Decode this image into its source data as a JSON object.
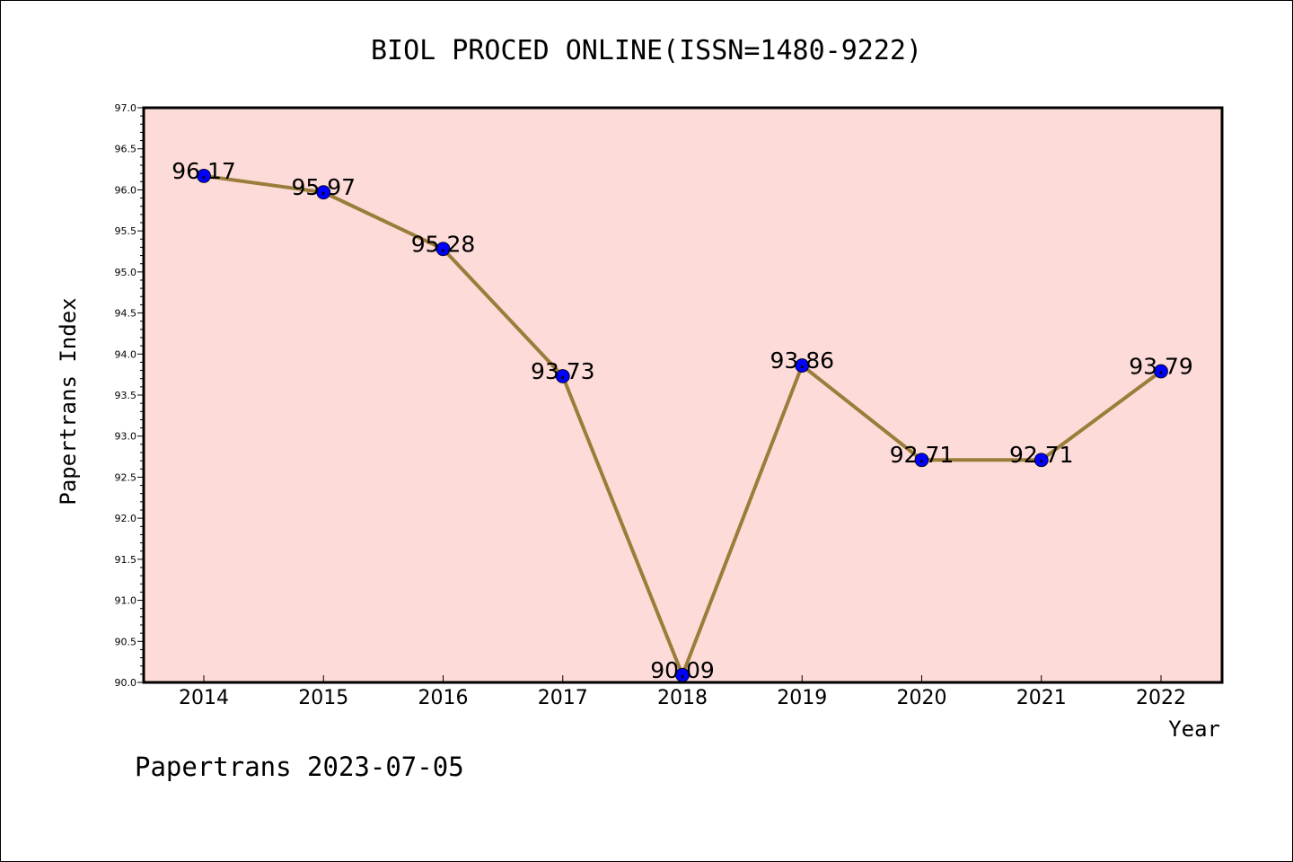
{
  "chart_data": {
    "type": "line",
    "title": "BIOL PROCED ONLINE(ISSN=1480-9222)",
    "xlabel": "Year",
    "ylabel": "Papertrans Index",
    "categories": [
      "2014",
      "2015",
      "2016",
      "2017",
      "2018",
      "2019",
      "2020",
      "2021",
      "2022"
    ],
    "values": [
      96.17,
      95.97,
      95.28,
      93.73,
      90.09,
      93.86,
      92.71,
      92.71,
      93.79
    ],
    "data_labels": [
      "96.17",
      "95.97",
      "95.28",
      "93.73",
      "90.09",
      "93.86",
      "92.71",
      "92.71",
      "93.79"
    ],
    "ylim": [
      90.0,
      97.0
    ],
    "yticks": [
      "90.0",
      "90.5",
      "91.0",
      "91.5",
      "92.0",
      "92.5",
      "93.0",
      "93.5",
      "94.0",
      "94.5",
      "95.0",
      "95.5",
      "96.0",
      "96.5",
      "97.0"
    ],
    "grid": false,
    "colors": {
      "plot_background": "#fddbd8",
      "line": "#9a7d3a",
      "marker": "#0000ff"
    }
  },
  "footer": "Papertrans 2023-07-05"
}
